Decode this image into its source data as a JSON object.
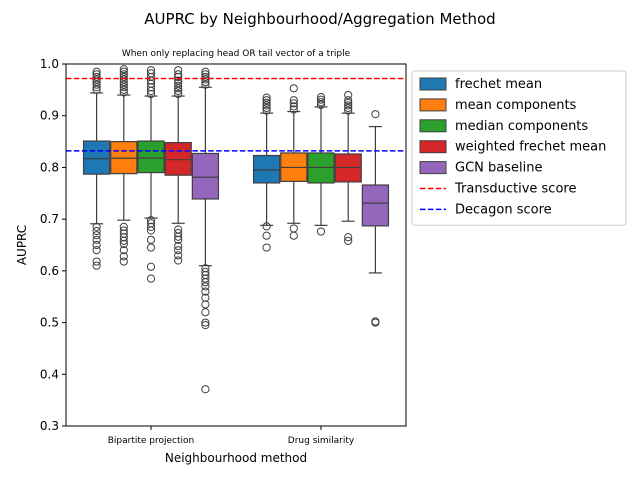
{
  "chart_data": {
    "type": "box",
    "title": "AUPRC by Neighbourhood/Aggregation Method",
    "subtitle": "When only replacing head OR tail vector of a triple",
    "xlabel": "Neighbourhood method",
    "ylabel": "AUPRC",
    "ylim": [
      0.3,
      1.0
    ],
    "yticks": [
      "0.3",
      "0.4",
      "0.5",
      "0.6",
      "0.7",
      "0.8",
      "0.9",
      "1.0"
    ],
    "categories": [
      "Bipartite projection",
      "Drug similarity"
    ],
    "grid": false,
    "legend_position": "outside-right",
    "series": [
      {
        "name": "frechet mean",
        "color": "#1f77b4",
        "boxes": [
          {
            "q1": 0.787,
            "median": 0.817,
            "q3": 0.851,
            "whislo": 0.691,
            "whishi": 0.944,
            "outliers": [
              0.95,
              0.955,
              0.96,
              0.965,
              0.97,
              0.975,
              0.98,
              0.985,
              0.685,
              0.677,
              0.669,
              0.66,
              0.65,
              0.64,
              0.618,
              0.61
            ]
          },
          {
            "q1": 0.77,
            "median": 0.795,
            "q3": 0.823,
            "whislo": 0.688,
            "whishi": 0.905,
            "outliers": [
              0.91,
              0.915,
              0.92,
              0.925,
              0.93,
              0.935,
              0.686,
              0.668,
              0.645
            ]
          }
        ]
      },
      {
        "name": "mean components",
        "color": "#ff7f0e",
        "boxes": [
          {
            "q1": 0.788,
            "median": 0.818,
            "q3": 0.85,
            "whislo": 0.698,
            "whishi": 0.94,
            "outliers": [
              0.945,
              0.95,
              0.955,
              0.96,
              0.965,
              0.97,
              0.975,
              0.98,
              0.985,
              0.99,
              0.685,
              0.678,
              0.672,
              0.665,
              0.658,
              0.652,
              0.64,
              0.628,
              0.618
            ]
          },
          {
            "q1": 0.773,
            "median": 0.8,
            "q3": 0.828,
            "whislo": 0.692,
            "whishi": 0.908,
            "outliers": [
              0.912,
              0.918,
              0.924,
              0.93,
              0.953,
              0.682,
              0.668
            ]
          }
        ]
      },
      {
        "name": "median components",
        "color": "#2ca02c",
        "boxes": [
          {
            "q1": 0.79,
            "median": 0.818,
            "q3": 0.851,
            "whislo": 0.702,
            "whishi": 0.938,
            "outliers": [
              0.942,
              0.948,
              0.955,
              0.962,
              0.968,
              0.975,
              0.982,
              0.988,
              0.698,
              0.692,
              0.685,
              0.678,
              0.66,
              0.645,
              0.608,
              0.585
            ]
          },
          {
            "q1": 0.77,
            "median": 0.8,
            "q3": 0.828,
            "whislo": 0.688,
            "whishi": 0.917,
            "outliers": [
              0.921,
              0.926,
              0.931,
              0.936,
              0.676
            ]
          }
        ]
      },
      {
        "name": "weighted frechet mean",
        "color": "#d62728",
        "boxes": [
          {
            "q1": 0.785,
            "median": 0.815,
            "q3": 0.848,
            "whislo": 0.692,
            "whishi": 0.938,
            "outliers": [
              0.942,
              0.948,
              0.953,
              0.958,
              0.963,
              0.968,
              0.975,
              0.98,
              0.988,
              0.68,
              0.673,
              0.666,
              0.66,
              0.648,
              0.64,
              0.63,
              0.62
            ]
          },
          {
            "q1": 0.772,
            "median": 0.8,
            "q3": 0.826,
            "whislo": 0.696,
            "whishi": 0.905,
            "outliers": [
              0.91,
              0.915,
              0.92,
              0.925,
              0.93,
              0.94,
              0.665,
              0.658
            ]
          }
        ]
      },
      {
        "name": "GCN baseline",
        "color": "#9467bd",
        "boxes": [
          {
            "q1": 0.739,
            "median": 0.781,
            "q3": 0.827,
            "whislo": 0.61,
            "whishi": 0.955,
            "outliers": [
              0.96,
              0.965,
              0.97,
              0.975,
              0.98,
              0.985,
              0.605,
              0.598,
              0.592,
              0.585,
              0.578,
              0.57,
              0.56,
              0.548,
              0.535,
              0.52,
              0.5,
              0.495,
              0.371
            ]
          },
          {
            "q1": 0.687,
            "median": 0.731,
            "q3": 0.766,
            "whislo": 0.596,
            "whishi": 0.879,
            "outliers": [
              0.903,
              0.502,
              0.5
            ]
          }
        ]
      }
    ],
    "reference_lines": [
      {
        "name": "Transductive score",
        "value": 0.972,
        "color": "#ff0000",
        "style": "dashed"
      },
      {
        "name": "Decagon score",
        "value": 0.832,
        "color": "#0000ff",
        "style": "dashed"
      }
    ]
  }
}
